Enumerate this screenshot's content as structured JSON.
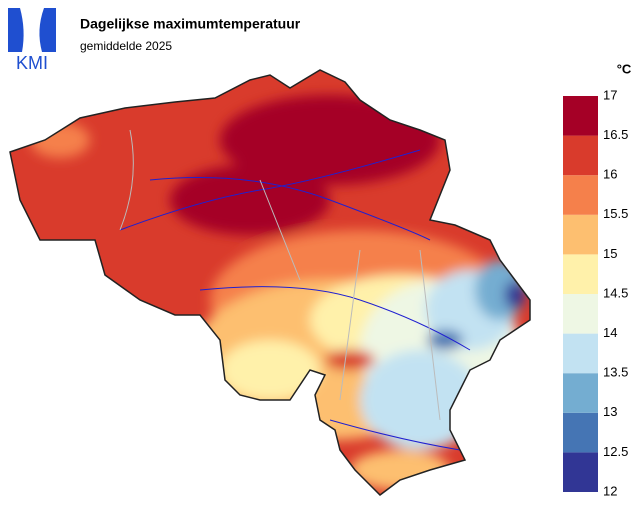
{
  "header": {
    "logo": "KMI",
    "title": "Dagelijkse maximumtemperatuur",
    "subtitle": "gemiddelde 2025"
  },
  "legend": {
    "unit": "°C",
    "ticks": [
      12,
      12.5,
      13,
      13.5,
      14,
      14.5,
      15,
      15.5,
      16,
      16.5,
      17
    ],
    "colors": [
      "#313695",
      "#4575b4",
      "#74add1",
      "#c2e2f2",
      "#eef7e4",
      "#fff1aa",
      "#fdbf70",
      "#f5804b",
      "#d93b2c",
      "#a50026"
    ]
  }
}
